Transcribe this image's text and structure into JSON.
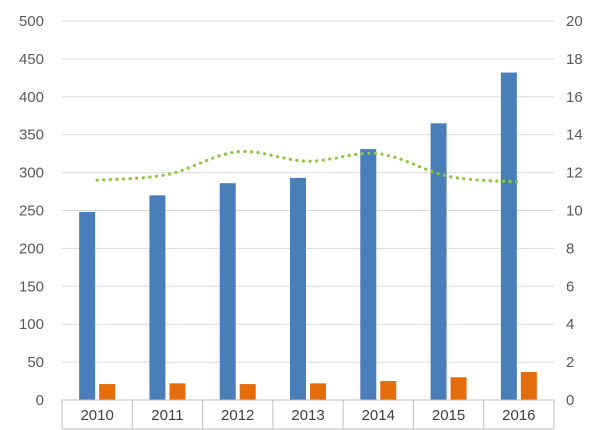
{
  "chart_data": {
    "type": "bar",
    "categories": [
      "2010",
      "2011",
      "2012",
      "2013",
      "2014",
      "2015",
      "2016"
    ],
    "series": [
      {
        "type": "bar",
        "axis": "left",
        "color": "#4a7ebb",
        "values": [
          248,
          270,
          286,
          293,
          331,
          365,
          432
        ]
      },
      {
        "type": "bar",
        "axis": "left",
        "color": "#e46c0a",
        "values": [
          21,
          22,
          21,
          22,
          25,
          30,
          37
        ]
      },
      {
        "type": "line",
        "axis": "right",
        "color": "#8dc63f",
        "style": "dotted",
        "values": [
          11.6,
          11.9,
          13.1,
          12.6,
          13.0,
          11.8,
          11.5
        ]
      }
    ],
    "y_left": {
      "min": 0,
      "max": 500,
      "ticks": [
        "0",
        "50",
        "100",
        "150",
        "200",
        "250",
        "300",
        "350",
        "400",
        "450",
        "500"
      ]
    },
    "y_right": {
      "min": 0,
      "max": 20,
      "ticks": [
        "0",
        "2",
        "4",
        "6",
        "8",
        "10",
        "12",
        "14",
        "16",
        "18",
        "20"
      ]
    },
    "grid": true,
    "legend": "none",
    "title": "",
    "xlabel": "",
    "ylabel": ""
  }
}
